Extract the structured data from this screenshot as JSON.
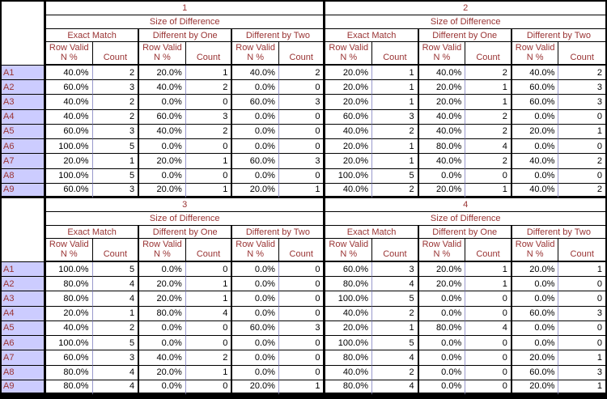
{
  "colors": {
    "label_bg": "#ccccff",
    "header_text": "#993333",
    "value_text": "#000000",
    "grid_line": "#000000",
    "pair_line": "#9999cc",
    "flag_green": "#006600"
  },
  "header": {
    "size_of_difference": "Size of Difference",
    "groups": [
      "Exact Match",
      "Different by One",
      "Different by Two"
    ],
    "row_valid_lines": [
      "Row Valid",
      "N %"
    ],
    "count_label": "Count"
  },
  "row_labels": [
    "A1",
    "A2",
    "A3",
    "A4",
    "A5",
    "A6",
    "A7",
    "A8",
    "A9"
  ],
  "sections": [
    {
      "number": "1",
      "rows": [
        [
          "40.0%",
          2,
          "20.0%",
          1,
          "40.0%",
          2
        ],
        [
          "60.0%",
          3,
          "40.0%",
          2,
          "0.0%",
          0
        ],
        [
          "40.0%",
          2,
          "0.0%",
          0,
          "60.0%",
          3
        ],
        [
          "40.0%",
          2,
          "60.0%",
          3,
          "0.0%",
          0
        ],
        [
          "60.0%",
          3,
          "40.0%",
          2,
          "0.0%",
          0
        ],
        [
          "100.0%",
          5,
          "0.0%",
          0,
          "0.0%",
          0
        ],
        [
          "20.0%",
          1,
          "20.0%",
          1,
          "60.0%",
          3
        ],
        [
          "100.0%",
          5,
          "0.0%",
          0,
          "0.0%",
          0
        ],
        [
          "60.0%",
          3,
          "20.0%",
          1,
          "20.0%",
          1
        ]
      ]
    },
    {
      "number": "2",
      "rows": [
        [
          "20.0%",
          1,
          "40.0%",
          2,
          "40.0%",
          2
        ],
        [
          "20.0%",
          1,
          "20.0%",
          1,
          "60.0%",
          3
        ],
        [
          "20.0%",
          1,
          "20.0%",
          1,
          "60.0%",
          3
        ],
        [
          "60.0%",
          3,
          "40.0%",
          2,
          "0.0%",
          0
        ],
        [
          "40.0%",
          2,
          "40.0%",
          2,
          "20.0%",
          1
        ],
        [
          "20.0%",
          1,
          "80.0%",
          4,
          "0.0%",
          0
        ],
        [
          "20.0%",
          1,
          "40.0%",
          2,
          "40.0%",
          2
        ],
        [
          "100.0%",
          5,
          "0.0%",
          0,
          "0.0%",
          0
        ],
        [
          "40.0%",
          2,
          "20.0%",
          1,
          "40.0%",
          2
        ]
      ]
    },
    {
      "number": "3",
      "rows": [
        [
          "100.0%",
          5,
          "0.0%",
          0,
          "0.0%",
          0
        ],
        [
          "80.0%",
          4,
          "20.0%",
          1,
          "0.0%",
          0
        ],
        [
          "80.0%",
          4,
          "20.0%",
          1,
          "0.0%",
          0
        ],
        [
          "20.0%",
          1,
          "80.0%",
          4,
          "0.0%",
          0
        ],
        [
          "40.0%",
          2,
          "0.0%",
          0,
          "60.0%",
          3
        ],
        [
          "100.0%",
          5,
          "0.0%",
          0,
          "0.0%",
          0
        ],
        [
          "60.0%",
          3,
          "40.0%",
          2,
          "0.0%",
          0
        ],
        [
          "80.0%",
          4,
          "20.0%",
          1,
          "0.0%",
          0
        ],
        [
          "80.0%",
          4,
          "0.0%",
          0,
          "20.0%",
          1
        ]
      ]
    },
    {
      "number": "4",
      "rows": [
        [
          "60.0%",
          3,
          "20.0%",
          1,
          "20.0%",
          1
        ],
        [
          "80.0%",
          4,
          "20.0%",
          1,
          "0.0%",
          0
        ],
        [
          "100.0%",
          5,
          "0.0%",
          0,
          "0.0%",
          0
        ],
        [
          "40.0%",
          2,
          "0.0%",
          0,
          "60.0%",
          3
        ],
        [
          "20.0%",
          1,
          "80.0%",
          4,
          "0.0%",
          0
        ],
        [
          "100.0%",
          5,
          "0.0%",
          0,
          "0.0%",
          0
        ],
        [
          "80.0%",
          4,
          "0.0%",
          0,
          "20.0%",
          1
        ],
        [
          "40.0%",
          2,
          "0.0%",
          0,
          "60.0%",
          3
        ],
        [
          "80.0%",
          4,
          "0.0%",
          0,
          "20.0%",
          1
        ]
      ]
    }
  ]
}
